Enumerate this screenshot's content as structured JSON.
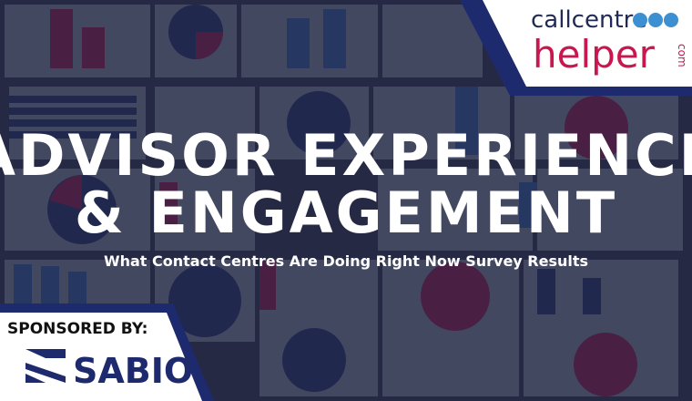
{
  "header": {
    "title_line_1": "ADVISOR EXPERIENCE",
    "title_line_2": "& ENGAGEMENT",
    "subtitle": "What Contact Centres Are Doing Right Now Survey Results"
  },
  "logo": {
    "word_1": "callcentre",
    "word_2": "helper",
    "suffix": "com"
  },
  "sponsor": {
    "label": "SPONSORED BY:",
    "name": "SABIO"
  }
}
